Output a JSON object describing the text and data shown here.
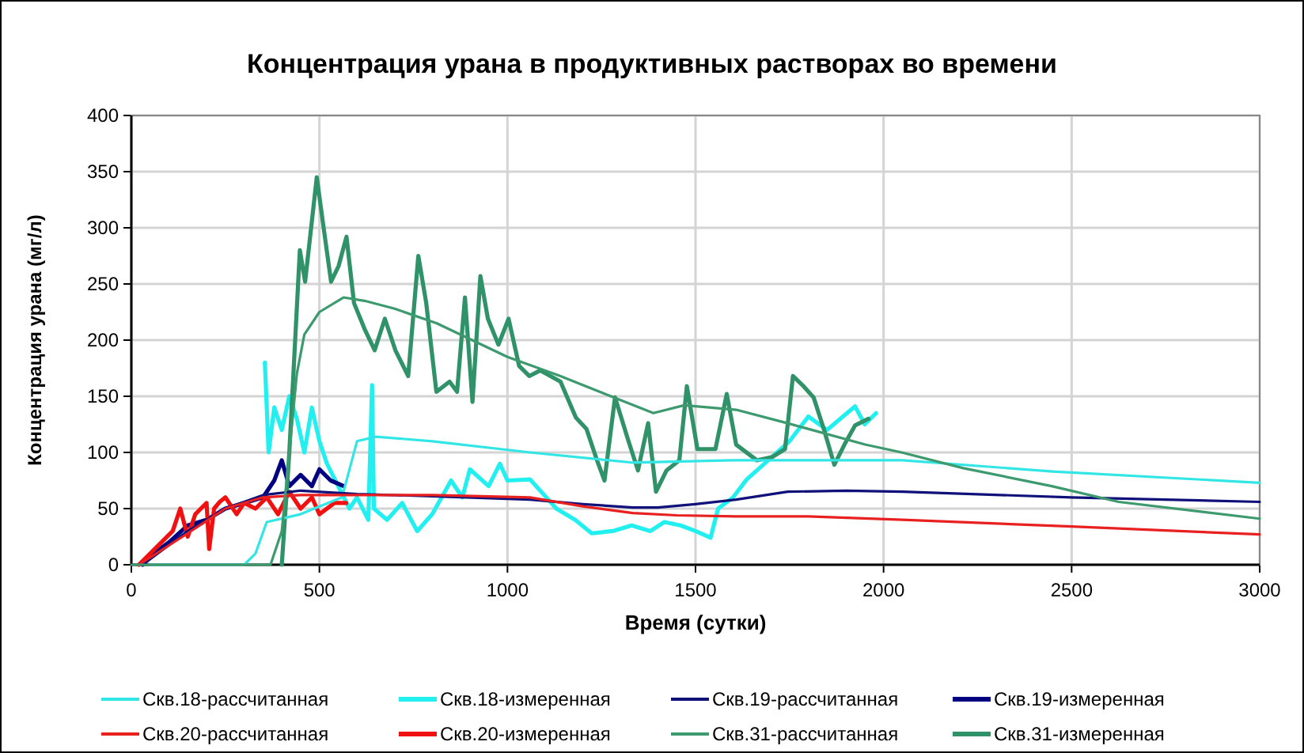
{
  "chart_data": {
    "type": "line",
    "title": "Концентрация урана в продуктивных растворах во времени",
    "xlabel": "Время (сутки)",
    "ylabel": "Концентрация урана (мг/л)",
    "xlim": [
      0,
      3000
    ],
    "xticks": [
      0,
      500,
      1000,
      1500,
      2000,
      2500,
      3000
    ],
    "ylim": [
      0,
      400
    ],
    "yticks": [
      0,
      50,
      100,
      150,
      200,
      250,
      300,
      350,
      400
    ],
    "grid": true,
    "legend": "bottom",
    "marker": "none",
    "line_style": "solid",
    "series": [
      {
        "name": "Скв.18-рассчитанная",
        "color": "#33e6e6",
        "x": [
          50,
          300,
          330,
          360,
          450,
          560,
          600,
          650,
          800,
          1060,
          1330,
          1600,
          2050,
          2450,
          3000
        ],
        "values": [
          0,
          0,
          10,
          38,
          45,
          60,
          110,
          114,
          110,
          100,
          91,
          93,
          93,
          83,
          73
        ]
      },
      {
        "name": "Скв.18-измеренная",
        "color": "#22f0f0",
        "x": [
          355,
          365,
          380,
          400,
          420,
          440,
          460,
          480,
          500,
          520,
          550,
          580,
          600,
          630,
          640,
          645,
          680,
          720,
          760,
          800,
          850,
          880,
          900,
          950,
          980,
          1000,
          1060,
          1130,
          1180,
          1224,
          1280,
          1330,
          1380,
          1417,
          1460,
          1500,
          1540,
          1560,
          1600,
          1636,
          1700,
          1750,
          1800,
          1850,
          1924,
          1950,
          1980
        ],
        "values": [
          180,
          100,
          140,
          120,
          150,
          130,
          100,
          140,
          110,
          90,
          70,
          50,
          60,
          40,
          160,
          50,
          40,
          55,
          30,
          45,
          75,
          60,
          85,
          70,
          90,
          75,
          76,
          50,
          40,
          28,
          30,
          35,
          30,
          38,
          35,
          30,
          24,
          50,
          60,
          76,
          95,
          110,
          132,
          120,
          141,
          125,
          135
        ]
      },
      {
        "name": "Скв.19-рассчитанная",
        "color": "#10107a",
        "x": [
          30,
          150,
          250,
          350,
          450,
          600,
          800,
          1060,
          1200,
          1333,
          1400,
          1500,
          1608,
          1745,
          1900,
          2050,
          2500,
          3000
        ],
        "values": [
          0,
          30,
          50,
          62,
          66,
          63,
          61,
          58,
          54,
          51,
          51,
          54,
          58,
          65,
          66,
          65,
          60,
          56
        ]
      },
      {
        "name": "Скв.19-измеренная",
        "color": "#000080",
        "x": [
          30,
          60,
          100,
          150,
          200,
          250,
          300,
          350,
          380,
          400,
          420,
          450,
          480,
          500,
          530,
          565
        ],
        "values": [
          0,
          10,
          20,
          35,
          40,
          50,
          55,
          60,
          75,
          93,
          70,
          80,
          70,
          85,
          75,
          70
        ]
      },
      {
        "name": "Скв.20-рассчитанная",
        "color": "#e82020",
        "x": [
          20,
          150,
          250,
          350,
          450,
          800,
          1060,
          1200,
          1333,
          1450,
          1608,
          1800,
          2050,
          2500,
          3000
        ],
        "values": [
          0,
          28,
          50,
          60,
          62,
          62,
          60,
          52,
          46,
          44,
          43,
          43,
          40,
          34,
          27
        ]
      },
      {
        "name": "Скв.20-измеренная",
        "color": "#f01010",
        "x": [
          20,
          50,
          80,
          110,
          130,
          150,
          170,
          200,
          207,
          220,
          235,
          250,
          280,
          300,
          330,
          360,
          390,
          420,
          450,
          480,
          500,
          540,
          571
        ],
        "values": [
          0,
          10,
          20,
          30,
          50,
          25,
          45,
          55,
          14,
          50,
          56,
          60,
          45,
          55,
          50,
          60,
          45,
          65,
          50,
          60,
          45,
          55,
          55
        ]
      },
      {
        "name": "Скв.31-рассчитанная",
        "color": "#3c9a6e",
        "x": [
          0,
          370,
          400,
          420,
          440,
          460,
          500,
          564,
          620,
          700,
          812,
          1000,
          1141,
          1200,
          1388,
          1470,
          1608,
          1745,
          1951,
          2048,
          2212,
          2447,
          2625,
          3000
        ],
        "values": [
          0,
          0,
          30,
          100,
          170,
          205,
          225,
          238,
          235,
          228,
          215,
          185,
          168,
          160,
          135,
          142,
          138,
          126,
          107,
          100,
          86,
          70,
          56,
          41
        ]
      },
      {
        "name": "Скв.31-измеренная",
        "color": "#2f9268",
        "x": [
          400,
          420,
          448,
          462,
          493,
          510,
          531,
          551,
          572,
          592,
          620,
          647,
          674,
          702,
          736,
          763,
          784,
          811,
          846,
          866,
          887,
          907,
          928,
          948,
          976,
          1003,
          1031,
          1058,
          1087,
          1141,
          1182,
          1210,
          1238,
          1258,
          1286,
          1320,
          1347,
          1374,
          1395,
          1423,
          1457,
          1477,
          1505,
          1553,
          1583,
          1608,
          1663,
          1704,
          1738,
          1759,
          1787,
          1814,
          1841,
          1869,
          1896,
          1924,
          1960
        ],
        "values": [
          0,
          100,
          280,
          252,
          345,
          303,
          252,
          266,
          292,
          233,
          210,
          191,
          219,
          191,
          168,
          275,
          233,
          154,
          163,
          154,
          238,
          145,
          257,
          219,
          196,
          219,
          177,
          168,
          173,
          163,
          131,
          121,
          93,
          75,
          149,
          112,
          84,
          126,
          65,
          84,
          93,
          159,
          103,
          103,
          152,
          107,
          93,
          96,
          103,
          168,
          159,
          149,
          121,
          89,
          107,
          124,
          130
        ]
      }
    ]
  }
}
